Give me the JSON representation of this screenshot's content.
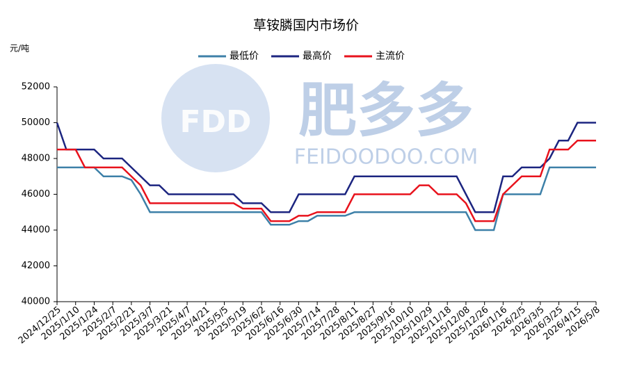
{
  "chart_data": {
    "type": "line",
    "title": "草铵膦国内市场价",
    "y_unit": "元/吨",
    "watermark": {
      "logo": "FDD",
      "name": "肥多多",
      "url": "FEIDOODOO.COM"
    },
    "categories": [
      "2024/12/25",
      null,
      "2025/1/10",
      null,
      "2025/1/24",
      null,
      "2025/2/7",
      null,
      "2025/2/21",
      null,
      "2025/3/7",
      null,
      "2025/3/21",
      null,
      "2025/4/7",
      null,
      "2025/4/21",
      null,
      "2025/5/5",
      null,
      "2025/5/19",
      null,
      "2025/6/2",
      null,
      "2025/6/16",
      null,
      "2025/6/30",
      null,
      "2025/7/14",
      null,
      "2025/7/28",
      null,
      "2025/8/11",
      null,
      "2025/8/27",
      null,
      "2025/9/16",
      null,
      "2025/10/10",
      null,
      "2025/10/29",
      null,
      "2025/11/18",
      null,
      "2025/12/08",
      null,
      "2025/12/26",
      null,
      "2026/1/16",
      null,
      "2026/2/5",
      null,
      "2026/3/5",
      null,
      "2026/3/25",
      null,
      "2026/4/15",
      null,
      "2026/5/8"
    ],
    "series": [
      {
        "name": "最低价",
        "color": "#3d80a8",
        "values": [
          47500,
          47500,
          47500,
          47500,
          47500,
          47000,
          47000,
          47000,
          46800,
          46000,
          45000,
          45000,
          45000,
          45000,
          45000,
          45000,
          45000,
          45000,
          45000,
          45000,
          45000,
          45000,
          45000,
          44300,
          44300,
          44300,
          44500,
          44500,
          44800,
          44800,
          44800,
          44800,
          45000,
          45000,
          45000,
          45000,
          45000,
          45000,
          45000,
          45000,
          45000,
          45000,
          45000,
          45000,
          45000,
          44000,
          44000,
          44000,
          46000,
          46000,
          46000,
          46000,
          46000,
          47500,
          47500,
          47500,
          47500,
          47500,
          47500
        ]
      },
      {
        "name": "最高价",
        "color": "#1c2580",
        "values": [
          50000,
          48500,
          48500,
          48500,
          48500,
          48000,
          48000,
          48000,
          47500,
          47000,
          46500,
          46500,
          46000,
          46000,
          46000,
          46000,
          46000,
          46000,
          46000,
          46000,
          45500,
          45500,
          45500,
          45000,
          45000,
          45000,
          46000,
          46000,
          46000,
          46000,
          46000,
          46000,
          47000,
          47000,
          47000,
          47000,
          47000,
          47000,
          47000,
          47000,
          47000,
          47000,
          47000,
          47000,
          46000,
          45000,
          45000,
          45000,
          47000,
          47000,
          47500,
          47500,
          47500,
          48000,
          49000,
          49000,
          50000,
          50000,
          50000
        ]
      },
      {
        "name": "主流价",
        "color": "#e8121c",
        "values": [
          48500,
          48500,
          48500,
          47500,
          47500,
          47500,
          47500,
          47500,
          47000,
          46500,
          45500,
          45500,
          45500,
          45500,
          45500,
          45500,
          45500,
          45500,
          45500,
          45500,
          45200,
          45200,
          45200,
          44500,
          44500,
          44500,
          44800,
          44800,
          45000,
          45000,
          45000,
          45000,
          46000,
          46000,
          46000,
          46000,
          46000,
          46000,
          46000,
          46500,
          46500,
          46000,
          46000,
          46000,
          45500,
          44500,
          44500,
          44500,
          46000,
          46500,
          47000,
          47000,
          47000,
          48500,
          48500,
          48500,
          49000,
          49000,
          49000
        ]
      }
    ],
    "ylim": [
      40000,
      52000
    ],
    "yticks": [
      40000,
      42000,
      44000,
      46000,
      48000,
      50000,
      52000
    ],
    "grid": false,
    "legend": "top"
  }
}
